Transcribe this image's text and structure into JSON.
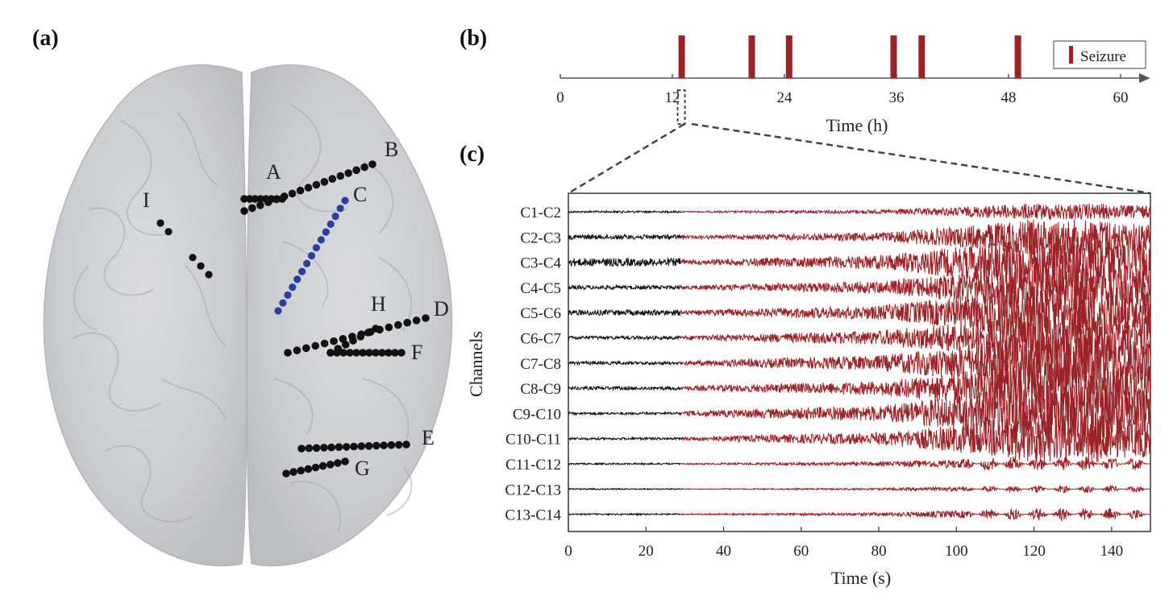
{
  "panels": {
    "a_label": "(a)",
    "b_label": "(b)",
    "c_label": "(c)"
  },
  "brain": {
    "electrodes": [
      {
        "name": "A",
        "color": "#111111"
      },
      {
        "name": "B",
        "color": "#111111"
      },
      {
        "name": "C",
        "color": "#2a3f9e"
      },
      {
        "name": "D",
        "color": "#111111"
      },
      {
        "name": "E",
        "color": "#111111"
      },
      {
        "name": "F",
        "color": "#111111"
      },
      {
        "name": "G",
        "color": "#111111"
      },
      {
        "name": "H",
        "color": "#111111"
      },
      {
        "name": "I",
        "color": "#111111"
      }
    ]
  },
  "chart_data": [
    {
      "type": "timeline",
      "xlabel": "Time (h)",
      "xlim": [
        0,
        63
      ],
      "xticks": [
        0,
        12,
        24,
        36,
        48,
        60
      ],
      "legend": "Seizure",
      "legend_position": "top-right",
      "color": "#9b2226",
      "seizure_times_h": [
        13,
        20.5,
        24.5,
        35.7,
        38.7,
        49
      ]
    },
    {
      "type": "line",
      "xlabel": "Time (s)",
      "ylabel": "Channels",
      "xlim": [
        0,
        150
      ],
      "xticks": [
        0,
        20,
        40,
        60,
        80,
        100,
        120,
        140
      ],
      "onset_s": 29,
      "pre_color": "#111111",
      "seizure_color": "#9b2226",
      "channels": [
        "C1-C2",
        "C2-C3",
        "C3-C4",
        "C4-C5",
        "C5-C6",
        "C6-C7",
        "C7-C8",
        "C8-C9",
        "C9-C10",
        "C10-C11",
        "C11-C12",
        "C12-C13",
        "C13-C14"
      ],
      "zoom_source_h": 13
    }
  ]
}
